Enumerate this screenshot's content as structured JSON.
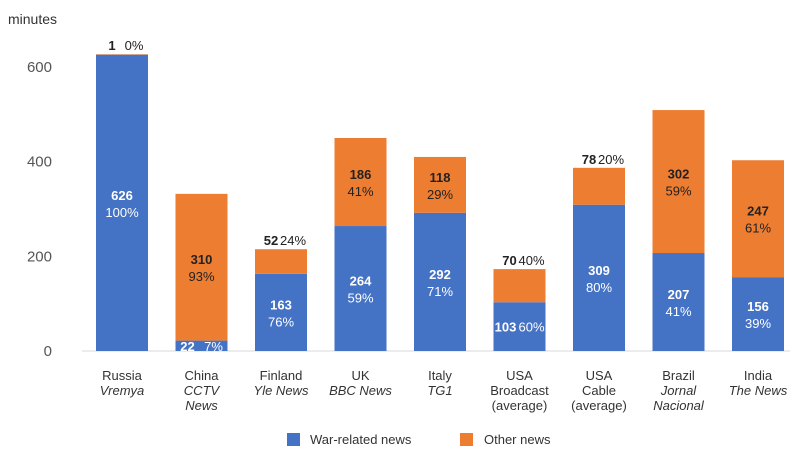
{
  "chart_data": {
    "type": "bar",
    "stacked": true,
    "ylabel": "minutes",
    "ylim": [
      0,
      650
    ],
    "yticks": [
      "0",
      "200",
      "400",
      "600"
    ],
    "grid": false,
    "legend_position": "bottom",
    "colors": {
      "war": "#4472C4",
      "other": "#ED7D31"
    },
    "categories": [
      {
        "name": "Russia",
        "program": [
          "Vremya"
        ]
      },
      {
        "name": "China",
        "program": [
          "CCTV",
          "News"
        ]
      },
      {
        "name": "Finland",
        "program": [
          "Yle News"
        ]
      },
      {
        "name": "UK",
        "program": [
          "BBC News"
        ]
      },
      {
        "name": "Italy",
        "program": [
          "TG1"
        ]
      },
      {
        "name": "USA",
        "program": [],
        "extra": [
          "Broadcast",
          "(average)"
        ]
      },
      {
        "name": "USA",
        "program": [],
        "extra": [
          "Cable",
          "(average)"
        ]
      },
      {
        "name": "Brazil",
        "program": [
          "Jornal",
          "Nacional"
        ]
      },
      {
        "name": "India",
        "program": [
          "The News"
        ]
      }
    ],
    "series": [
      {
        "name": "War-related news",
        "values": [
          626,
          22,
          163,
          264,
          292,
          103,
          309,
          207,
          156
        ],
        "labels": [
          "626",
          "22",
          "163",
          "264",
          "292",
          "103",
          "309",
          "207",
          "156"
        ],
        "percents": [
          "100%",
          "7%",
          "76%",
          "59%",
          "71%",
          "60%",
          "80%",
          "41%",
          "39%"
        ]
      },
      {
        "name": "Other news",
        "values": [
          1,
          310,
          52,
          186,
          118,
          70,
          78,
          302,
          247
        ],
        "labels": [
          "1",
          "310",
          "52",
          "186",
          "118",
          "70",
          "78",
          "302",
          "247"
        ],
        "percents": [
          "0%",
          "93%",
          "24%",
          "41%",
          "29%",
          "40%",
          "20%",
          "59%",
          "61%"
        ]
      }
    ]
  }
}
